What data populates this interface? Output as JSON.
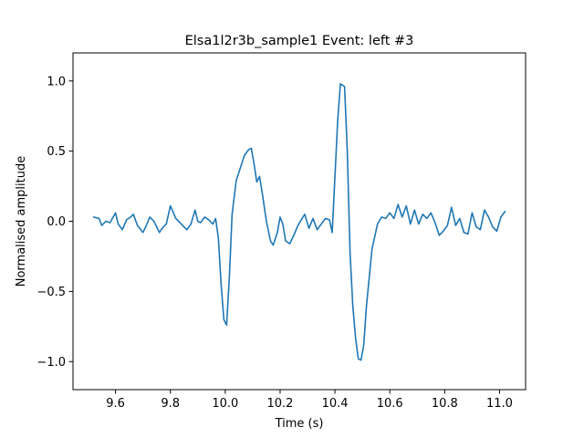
{
  "chart_data": {
    "type": "line",
    "title": "Elsa1l2r3b_sample1 Event: left #3",
    "xlabel": "Time (s)",
    "ylabel": "Normalised amplitude",
    "xlim": [
      9.445,
      11.095
    ],
    "ylim": [
      -1.2,
      1.2
    ],
    "grid": false,
    "x_ticks": [
      9.6,
      9.8,
      10.0,
      10.2,
      10.4,
      10.6,
      10.8,
      11.0
    ],
    "x_tick_labels": [
      "9.6",
      "9.8",
      "10.0",
      "10.2",
      "10.4",
      "10.6",
      "10.8",
      "11.0"
    ],
    "y_ticks": [
      -1.0,
      -0.5,
      0.0,
      0.5,
      1.0
    ],
    "y_tick_labels": [
      "−1.0",
      "−0.5",
      "0.0",
      "0.5",
      "1.0"
    ],
    "series": [
      {
        "color": "#1f77b4",
        "x": [
          9.52,
          9.54,
          9.55,
          9.565,
          9.58,
          9.6,
          9.61,
          9.625,
          9.64,
          9.655,
          9.665,
          9.68,
          9.7,
          9.71,
          9.725,
          9.74,
          9.76,
          9.77,
          9.785,
          9.8,
          9.82,
          9.835,
          9.85,
          9.86,
          9.875,
          9.89,
          9.9,
          9.91,
          9.925,
          9.94,
          9.955,
          9.965,
          9.975,
          9.985,
          9.995,
          10.005,
          10.015,
          10.025,
          10.04,
          10.055,
          10.07,
          10.085,
          10.095,
          10.105,
          10.115,
          10.125,
          10.135,
          10.15,
          10.165,
          10.175,
          10.19,
          10.2,
          10.21,
          10.22,
          10.235,
          10.25,
          10.265,
          10.28,
          10.29,
          10.305,
          10.32,
          10.335,
          10.35,
          10.365,
          10.38,
          10.39,
          10.4,
          10.41,
          10.42,
          10.435,
          10.445,
          10.455,
          10.465,
          10.475,
          10.485,
          10.495,
          10.505,
          10.515,
          10.525,
          10.535,
          10.545,
          10.555,
          10.57,
          10.585,
          10.6,
          10.615,
          10.63,
          10.645,
          10.66,
          10.675,
          10.69,
          10.705,
          10.72,
          10.735,
          10.75,
          10.765,
          10.78,
          10.795,
          10.81,
          10.825,
          10.84,
          10.855,
          10.87,
          10.885,
          10.9,
          10.915,
          10.93,
          10.945,
          10.96,
          10.975,
          10.99,
          11.005,
          11.02
        ],
        "y": [
          0.03,
          0.02,
          -0.03,
          0.0,
          -0.01,
          0.06,
          -0.02,
          -0.06,
          0.01,
          0.03,
          0.05,
          -0.03,
          -0.08,
          -0.04,
          0.03,
          0.0,
          -0.08,
          -0.05,
          -0.02,
          0.11,
          0.02,
          -0.01,
          -0.04,
          -0.06,
          -0.02,
          0.08,
          0.0,
          -0.01,
          0.03,
          0.01,
          -0.02,
          0.02,
          -0.12,
          -0.45,
          -0.7,
          -0.74,
          -0.4,
          0.05,
          0.29,
          0.38,
          0.47,
          0.51,
          0.52,
          0.41,
          0.28,
          0.32,
          0.2,
          0.0,
          -0.14,
          -0.17,
          -0.08,
          0.03,
          -0.02,
          -0.14,
          -0.16,
          -0.1,
          -0.03,
          0.02,
          0.05,
          -0.05,
          0.02,
          -0.06,
          -0.02,
          0.02,
          0.01,
          -0.08,
          0.32,
          0.72,
          0.98,
          0.96,
          0.5,
          -0.22,
          -0.6,
          -0.83,
          -0.98,
          -0.99,
          -0.88,
          -0.6,
          -0.4,
          -0.2,
          -0.11,
          -0.02,
          0.03,
          0.02,
          0.06,
          0.02,
          0.12,
          0.03,
          0.11,
          -0.02,
          0.08,
          -0.02,
          0.05,
          0.02,
          0.06,
          -0.01,
          -0.1,
          -0.07,
          -0.03,
          0.1,
          -0.03,
          0.02,
          -0.08,
          -0.09,
          0.06,
          -0.04,
          -0.06,
          0.08,
          0.03,
          -0.04,
          -0.07,
          0.03,
          0.07
        ]
      }
    ]
  }
}
